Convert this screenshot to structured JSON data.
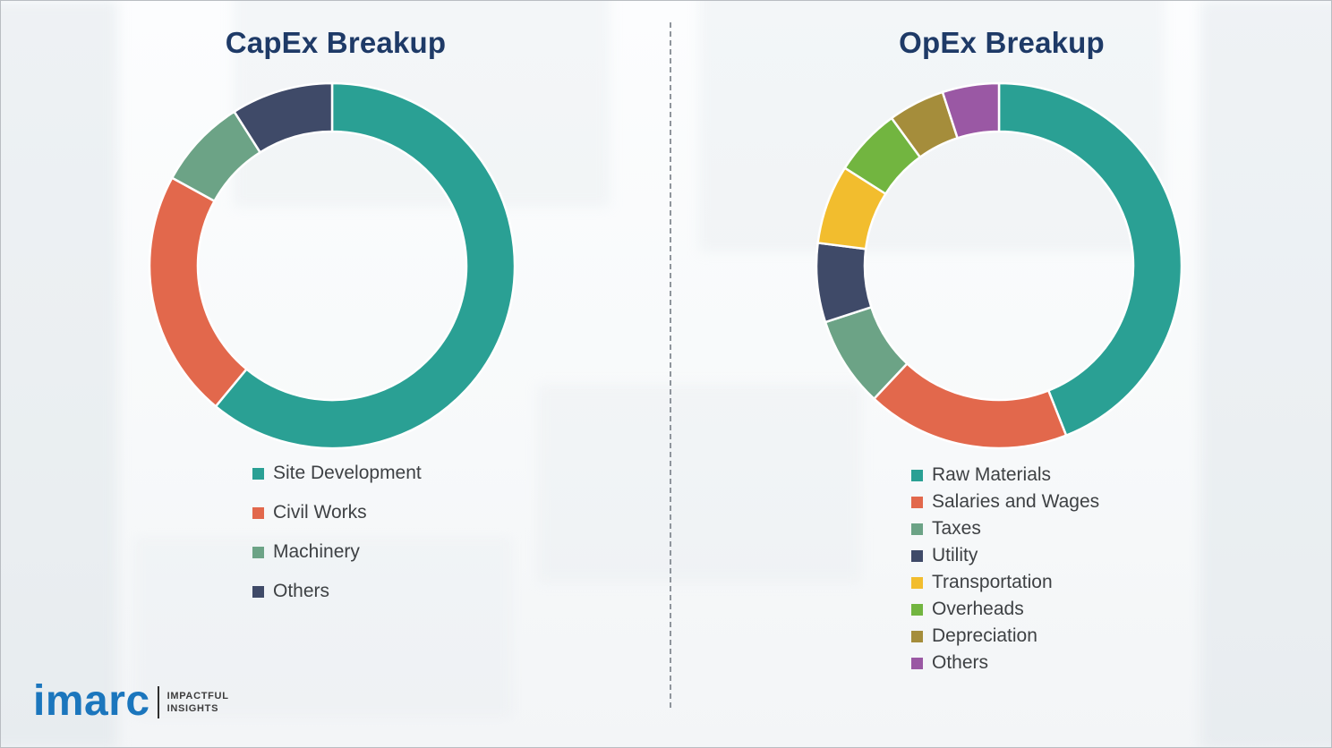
{
  "theme": {
    "title_color": "#1E3A67",
    "legend_text_color": "#3E4144",
    "brand_blue": "#1B76BD",
    "divider_color": "#8F959C"
  },
  "chart_data": [
    {
      "type": "pie",
      "donut": true,
      "title": "CapEx Breakup",
      "categories": [
        "Site Development",
        "Civil Works",
        "Machinery",
        "Others"
      ],
      "values": [
        61,
        22,
        8,
        9
      ],
      "colors": [
        "#2AA094",
        "#E2684C",
        "#6CA386",
        "#3F4A68"
      ],
      "start_angle_deg": 0,
      "direction": "clockwise",
      "legend_position": "below-left",
      "units": "percent-share (estimated, no data labels shown)"
    },
    {
      "type": "pie",
      "donut": true,
      "title": "OpEx Breakup",
      "categories": [
        "Raw Materials",
        "Salaries and Wages",
        "Taxes",
        "Utility",
        "Transportation",
        "Overheads",
        "Depreciation",
        "Others"
      ],
      "values": [
        44,
        18,
        8,
        7,
        7,
        6,
        5,
        5
      ],
      "colors": [
        "#2AA094",
        "#E2684C",
        "#6CA386",
        "#3F4A68",
        "#F2BD2E",
        "#72B540",
        "#A58D3B",
        "#9A58A4"
      ],
      "start_angle_deg": 0,
      "direction": "clockwise",
      "legend_position": "below-left",
      "units": "percent-share (estimated, no data labels shown)"
    }
  ],
  "logo": {
    "brand": "imarc",
    "tagline_line1": "IMPACTFUL",
    "tagline_line2": "INSIGHTS"
  }
}
